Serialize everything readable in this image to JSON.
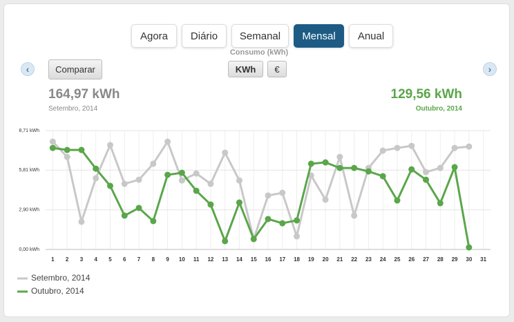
{
  "tabs": [
    "Agora",
    "Diário",
    "Semanal",
    "Mensal",
    "Anual"
  ],
  "unit_title": "Consumo (kWh)",
  "unit_buttons": [
    "KWh",
    "€"
  ],
  "compare_button": "Comparar",
  "summary": {
    "left": {
      "value": "164,97 kWh",
      "period": "Setembro, 2014"
    },
    "right": {
      "value": "129,56 kWh",
      "period": "Outubro, 2014"
    }
  },
  "chart_data": {
    "type": "line",
    "x": [
      1,
      2,
      3,
      4,
      5,
      6,
      7,
      8,
      9,
      10,
      11,
      12,
      13,
      14,
      15,
      16,
      17,
      18,
      19,
      20,
      21,
      22,
      23,
      24,
      25,
      26,
      27,
      28,
      29,
      30
    ],
    "series": [
      {
        "name": "Setembro, 2014",
        "color": "#c8c8c8",
        "values": [
          7.9,
          6.78,
          2.03,
          5.22,
          7.65,
          4.81,
          5.11,
          6.28,
          7.9,
          5.06,
          5.57,
          4.81,
          7.09,
          5.06,
          0.76,
          3.95,
          4.15,
          0.96,
          5.42,
          3.65,
          6.78,
          2.48,
          5.97,
          7.24,
          7.44,
          7.59,
          5.67,
          5.97,
          7.44,
          7.54
        ]
      },
      {
        "name": "Outubro, 2014",
        "color": "#5aa64a",
        "values": [
          7.44,
          7.29,
          7.29,
          5.92,
          4.66,
          2.48,
          3.04,
          2.08,
          5.47,
          5.62,
          4.3,
          3.29,
          0.61,
          3.44,
          0.76,
          2.23,
          1.92,
          2.13,
          6.28,
          6.38,
          5.97,
          5.97,
          5.72,
          5.37,
          3.59,
          5.87,
          5.11,
          3.39,
          6.03,
          0.15
        ]
      }
    ],
    "xlim": [
      0.5,
      31.5
    ],
    "xticks": [
      1,
      2,
      3,
      4,
      5,
      6,
      7,
      8,
      9,
      10,
      11,
      12,
      13,
      14,
      15,
      16,
      17,
      18,
      19,
      20,
      21,
      22,
      23,
      24,
      25,
      26,
      27,
      28,
      29,
      30,
      31
    ],
    "ylim": [
      0,
      8.71
    ],
    "yticks": [
      {
        "value": 0,
        "label": "0,00 kWh"
      },
      {
        "value": 2.9,
        "label": "2,90 kWh"
      },
      {
        "value": 5.81,
        "label": "5,81 kWh"
      },
      {
        "value": 8.71,
        "label": "8,71 kWh"
      }
    ],
    "grid": true
  }
}
